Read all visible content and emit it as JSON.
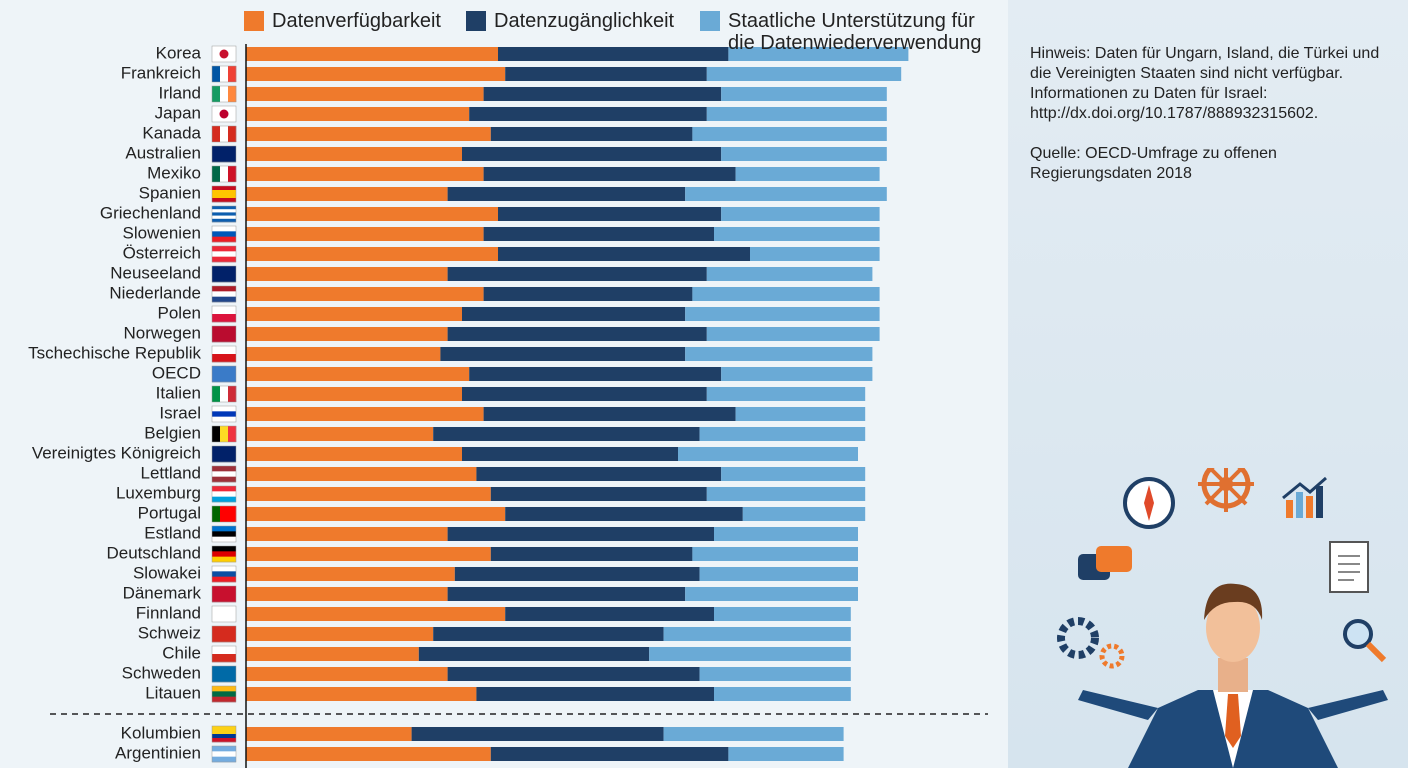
{
  "chart_data": {
    "type": "bar",
    "orientation": "horizontal",
    "stacked": true,
    "categories": [
      "Korea",
      "Frankreich",
      "Irland",
      "Japan",
      "Kanada",
      "Australien",
      "Mexiko",
      "Spanien",
      "Griechenland",
      "Slowenien",
      "Österreich",
      "Neuseeland",
      "Niederlande",
      "Polen",
      "Norwegen",
      "Tschechische Republik",
      "OECD",
      "Italien",
      "Israel",
      "Belgien",
      "Vereinigtes Königreich",
      "Lettland",
      "Luxemburg",
      "Portugal",
      "Estland",
      "Deutschland",
      "Slowakei",
      "Dänemark",
      "Finnland",
      "Schweiz",
      "Chile",
      "Schweden",
      "Litauen",
      "Kolumbien",
      "Argentinien"
    ],
    "series": [
      {
        "name": "Datenverfügbarkeit",
        "color": "#ef7a2c",
        "values": [
          0.35,
          0.36,
          0.33,
          0.31,
          0.34,
          0.3,
          0.33,
          0.28,
          0.35,
          0.33,
          0.35,
          0.28,
          0.33,
          0.3,
          0.28,
          0.27,
          0.31,
          0.3,
          0.33,
          0.26,
          0.3,
          0.32,
          0.34,
          0.36,
          0.28,
          0.34,
          0.29,
          0.28,
          0.36,
          0.26,
          0.24,
          0.28,
          0.32,
          0.23,
          0.34
        ]
      },
      {
        "name": "Datenzugänglichkeit",
        "color": "#1f3f66",
        "values": [
          0.32,
          0.28,
          0.33,
          0.33,
          0.28,
          0.36,
          0.35,
          0.33,
          0.31,
          0.32,
          0.35,
          0.36,
          0.29,
          0.31,
          0.36,
          0.34,
          0.35,
          0.34,
          0.35,
          0.37,
          0.3,
          0.34,
          0.3,
          0.33,
          0.37,
          0.28,
          0.34,
          0.33,
          0.29,
          0.32,
          0.32,
          0.35,
          0.33,
          0.35,
          0.33
        ]
      },
      {
        "name": "Staatliche Unterstützung für die Datenwiederverwendung",
        "color": "#6aaad6",
        "values": [
          0.25,
          0.27,
          0.23,
          0.25,
          0.27,
          0.23,
          0.2,
          0.28,
          0.22,
          0.23,
          0.18,
          0.23,
          0.26,
          0.27,
          0.24,
          0.26,
          0.21,
          0.22,
          0.18,
          0.23,
          0.25,
          0.2,
          0.22,
          0.17,
          0.2,
          0.23,
          0.22,
          0.24,
          0.19,
          0.26,
          0.28,
          0.21,
          0.19,
          0.25,
          0.16
        ]
      }
    ],
    "xlim": [
      0,
      1
    ]
  },
  "notes": [
    "Hinweis: Daten für Ungarn, Island, die Türkei und die Vereinigten Staaten sind nicht verfügbar. Informationen zu Daten für Israel: http://dx.doi.org/10.1787/888932315602.",
    "Quelle: OECD-Umfrage zu offenen Regierungsdaten 2018"
  ]
}
